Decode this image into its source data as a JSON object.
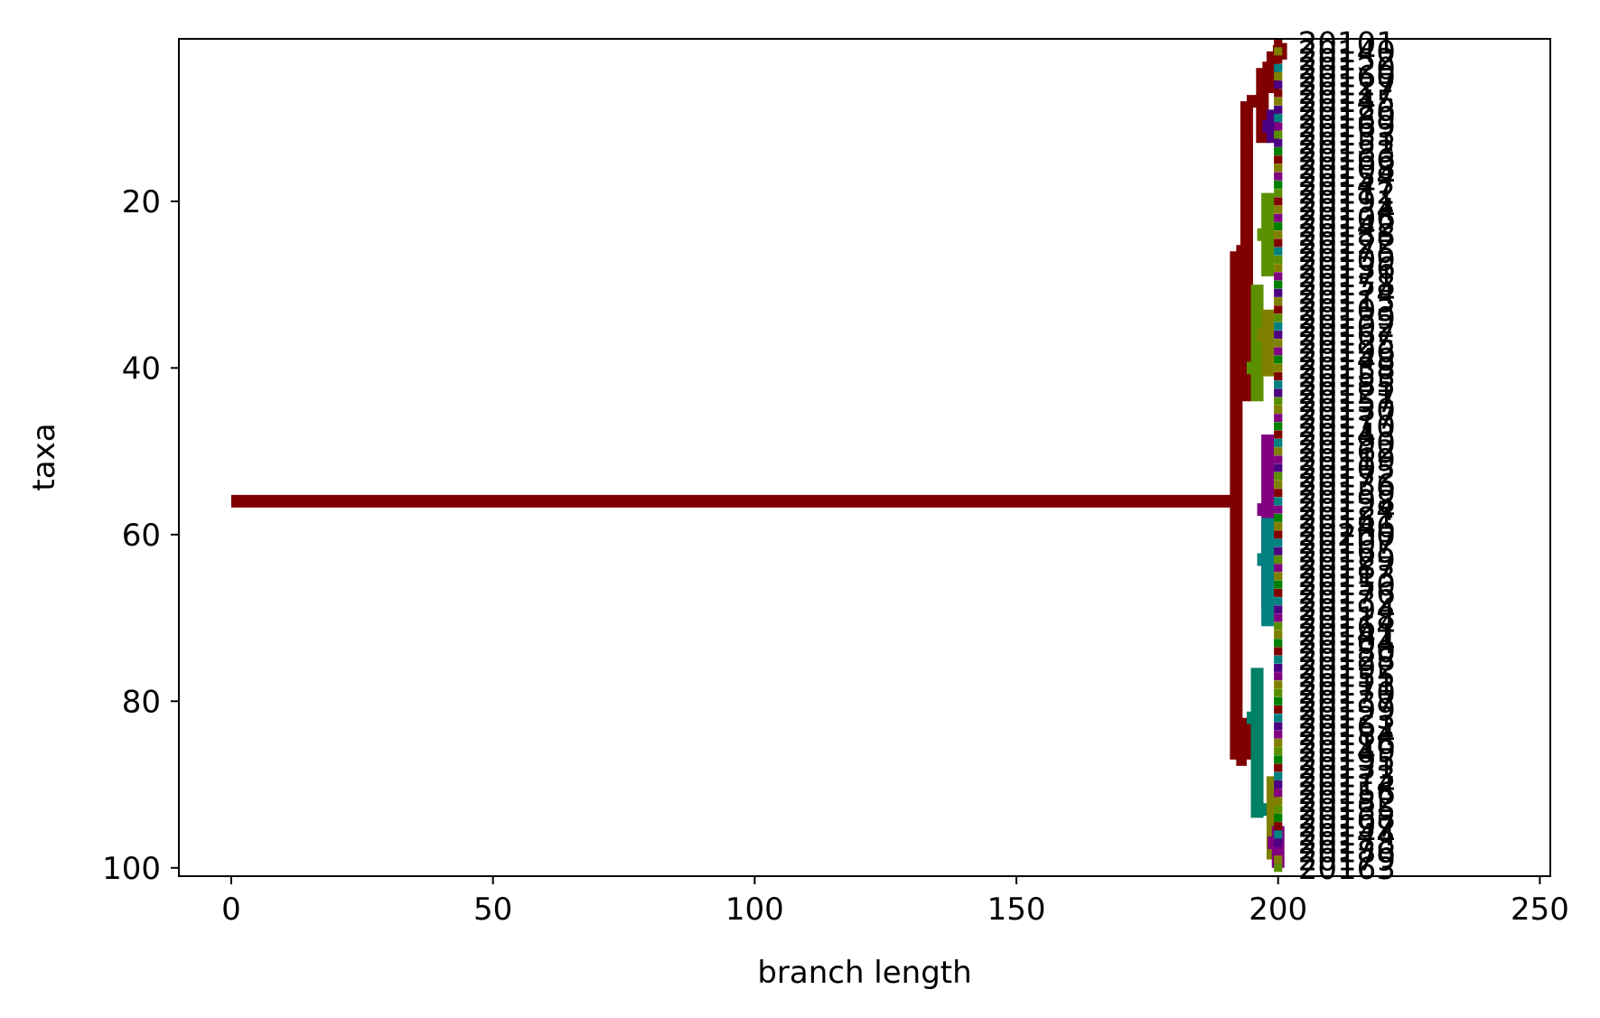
{
  "chart_data": {
    "type": "tree",
    "title": "",
    "xlabel": "branch length",
    "ylabel": "taxa",
    "xlim": [
      -10,
      252
    ],
    "ylim": [
      101,
      0.5
    ],
    "y_inverted": true,
    "grid": false,
    "legend": "none",
    "xticks": [
      0,
      50,
      100,
      150,
      200,
      250
    ],
    "yticks": [
      20,
      40,
      60,
      80,
      100
    ],
    "branches": [
      {
        "kind": "h",
        "x1": 0,
        "x2": 192,
        "y": 56,
        "color": "#800000"
      },
      {
        "kind": "v",
        "x": 192,
        "y1": 26,
        "y2": 87,
        "color": "#800000"
      },
      {
        "kind": "h",
        "x1": 192,
        "x2": 194,
        "y": 26,
        "color": "#800000"
      },
      {
        "kind": "v",
        "x": 194,
        "y1": 8,
        "y2": 44,
        "color": "#800000"
      },
      {
        "kind": "h",
        "x1": 194,
        "x2": 197,
        "y": 8,
        "color": "#800000"
      },
      {
        "kind": "v",
        "x": 197,
        "y1": 4,
        "y2": 13,
        "color": "#800000"
      },
      {
        "kind": "h",
        "x1": 197,
        "x2": 199,
        "y": 4,
        "color": "#800000"
      },
      {
        "kind": "v",
        "x": 199,
        "y1": 2,
        "y2": 7,
        "color": "#800000"
      },
      {
        "kind": "h",
        "x1": 199,
        "x2": 200.5,
        "y": 2,
        "color": "#800000"
      },
      {
        "kind": "v",
        "x": 200.5,
        "y1": 1,
        "y2": 3,
        "color": "#800000"
      },
      {
        "kind": "h",
        "x1": 197,
        "x2": 199,
        "y": 11,
        "color": "#4b0082"
      },
      {
        "kind": "v",
        "x": 199,
        "y1": 9,
        "y2": 13,
        "color": "#4b0082"
      },
      {
        "kind": "h",
        "x1": 194,
        "x2": 196,
        "y": 40,
        "color": "#5a8f00"
      },
      {
        "kind": "v",
        "x": 196,
        "y1": 30,
        "y2": 44,
        "color": "#5a8f00"
      },
      {
        "kind": "h",
        "x1": 196,
        "x2": 198,
        "y": 24,
        "color": "#5a8f00"
      },
      {
        "kind": "v",
        "x": 198,
        "y1": 19,
        "y2": 29,
        "color": "#5a8f00"
      },
      {
        "kind": "h",
        "x1": 196,
        "x2": 198,
        "y": 36,
        "color": "#808000"
      },
      {
        "kind": "v",
        "x": 198,
        "y1": 33,
        "y2": 41,
        "color": "#808000"
      },
      {
        "kind": "h",
        "x1": 192,
        "x2": 194,
        "y": 87,
        "color": "#800000"
      },
      {
        "kind": "v",
        "x": 194,
        "y1": 82,
        "y2": 87,
        "color": "#800000"
      },
      {
        "kind": "h",
        "x1": 194,
        "x2": 196,
        "y": 82,
        "color": "#008066"
      },
      {
        "kind": "v",
        "x": 196,
        "y1": 76,
        "y2": 94,
        "color": "#008066"
      },
      {
        "kind": "h",
        "x1": 196,
        "x2": 198,
        "y": 57,
        "color": "#800080"
      },
      {
        "kind": "v",
        "x": 198,
        "y1": 48,
        "y2": 69,
        "color": "#800080"
      },
      {
        "kind": "h",
        "x1": 196,
        "x2": 198,
        "y": 63,
        "color": "#008080"
      },
      {
        "kind": "v",
        "x": 198,
        "y1": 58,
        "y2": 71,
        "color": "#008080"
      },
      {
        "kind": "h",
        "x1": 196,
        "x2": 199,
        "y": 93,
        "color": "#008066"
      },
      {
        "kind": "v",
        "x": 199,
        "y1": 89,
        "y2": 99,
        "color": "#808000"
      },
      {
        "kind": "h",
        "x1": 198,
        "x2": 200,
        "y": 97,
        "color": "#800080"
      },
      {
        "kind": "v",
        "x": 200,
        "y1": 95,
        "y2": 100,
        "color": "#800080"
      }
    ],
    "tips": [
      {
        "y": 1,
        "label": "20101",
        "color": "#800000"
      },
      {
        "y": 2,
        "label": "20140",
        "color": "#808000"
      },
      {
        "y": 3,
        "label": "20152",
        "color": "#800000"
      },
      {
        "y": 4,
        "label": "20120",
        "color": "#008080"
      },
      {
        "y": 5,
        "label": "20160",
        "color": "#808000"
      },
      {
        "y": 6,
        "label": "20127",
        "color": "#4b0082"
      },
      {
        "y": 7,
        "label": "20117",
        "color": "#800000"
      },
      {
        "y": 8,
        "label": "20145",
        "color": "#808000"
      },
      {
        "y": 9,
        "label": "20126",
        "color": "#4b0082"
      },
      {
        "y": 10,
        "label": "20189",
        "color": "#008080"
      },
      {
        "y": 11,
        "label": "20169",
        "color": "#800080"
      },
      {
        "y": 12,
        "label": "20133",
        "color": "#5a8f00"
      },
      {
        "y": 13,
        "label": "20151",
        "color": "#4b0082"
      },
      {
        "y": 14,
        "label": "20183",
        "color": "#008000"
      },
      {
        "y": 15,
        "label": "20166",
        "color": "#800000"
      },
      {
        "y": 16,
        "label": "20108",
        "color": "#808000"
      },
      {
        "y": 17,
        "label": "20154",
        "color": "#800080"
      },
      {
        "y": 18,
        "label": "20147",
        "color": "#008000"
      },
      {
        "y": 19,
        "label": "20112",
        "color": "#5a8f00"
      },
      {
        "y": 20,
        "label": "20191",
        "color": "#800000"
      },
      {
        "y": 21,
        "label": "20134",
        "color": "#808000"
      },
      {
        "y": 22,
        "label": "20106",
        "color": "#800080"
      },
      {
        "y": 23,
        "label": "20142",
        "color": "#008000"
      },
      {
        "y": 24,
        "label": "20188",
        "color": "#808000"
      },
      {
        "y": 25,
        "label": "20122",
        "color": "#800000"
      },
      {
        "y": 26,
        "label": "20175",
        "color": "#008080"
      },
      {
        "y": 27,
        "label": "20109",
        "color": "#5a8f00"
      },
      {
        "y": 28,
        "label": "20136",
        "color": "#808000"
      },
      {
        "y": 29,
        "label": "20171",
        "color": "#800080"
      },
      {
        "y": 30,
        "label": "20158",
        "color": "#008000"
      },
      {
        "y": 31,
        "label": "20174",
        "color": "#4b0082"
      },
      {
        "y": 32,
        "label": "20115",
        "color": "#808000"
      },
      {
        "y": 33,
        "label": "20103",
        "color": "#800000"
      },
      {
        "y": 34,
        "label": "20139",
        "color": "#5a8f00"
      },
      {
        "y": 35,
        "label": "20102",
        "color": "#008080"
      },
      {
        "y": 36,
        "label": "20167",
        "color": "#4b0082"
      },
      {
        "y": 37,
        "label": "20125",
        "color": "#808000"
      },
      {
        "y": 38,
        "label": "20196",
        "color": "#800080"
      },
      {
        "y": 39,
        "label": "20148",
        "color": "#008000"
      },
      {
        "y": 40,
        "label": "20138",
        "color": "#808000"
      },
      {
        "y": 41,
        "label": "20153",
        "color": "#800000"
      },
      {
        "y": 42,
        "label": "20185",
        "color": "#008080"
      },
      {
        "y": 43,
        "label": "20121",
        "color": "#4b0082"
      },
      {
        "y": 44,
        "label": "20157",
        "color": "#5a8f00"
      },
      {
        "y": 45,
        "label": "20130",
        "color": "#808000"
      },
      {
        "y": 46,
        "label": "20177",
        "color": "#800080"
      },
      {
        "y": 47,
        "label": "20110",
        "color": "#008000"
      },
      {
        "y": 48,
        "label": "20143",
        "color": "#800000"
      },
      {
        "y": 49,
        "label": "20190",
        "color": "#008080"
      },
      {
        "y": 50,
        "label": "20162",
        "color": "#808000"
      },
      {
        "y": 51,
        "label": "20119",
        "color": "#800080"
      },
      {
        "y": 52,
        "label": "20105",
        "color": "#4b0082"
      },
      {
        "y": 53,
        "label": "20172",
        "color": "#5a8f00"
      },
      {
        "y": 54,
        "label": "20136",
        "color": "#808000"
      },
      {
        "y": 55,
        "label": "20159",
        "color": "#800000"
      },
      {
        "y": 56,
        "label": "20198",
        "color": "#008080"
      },
      {
        "y": 57,
        "label": "20124",
        "color": "#800080"
      },
      {
        "y": 58,
        "label": "20181",
        "color": "#008000"
      },
      {
        "y": 59,
        "label": "20146",
        "color": "#808000"
      },
      {
        "y": 60,
        "label": "20200",
        "color": "#800000"
      },
      {
        "y": 61,
        "label": "20107",
        "color": "#008080"
      },
      {
        "y": 62,
        "label": "20165",
        "color": "#4b0082"
      },
      {
        "y": 63,
        "label": "20129",
        "color": "#5a8f00"
      },
      {
        "y": 64,
        "label": "20187",
        "color": "#800080"
      },
      {
        "y": 65,
        "label": "20113",
        "color": "#808000"
      },
      {
        "y": 66,
        "label": "20150",
        "color": "#008000"
      },
      {
        "y": 67,
        "label": "20176",
        "color": "#800000"
      },
      {
        "y": 68,
        "label": "20132",
        "color": "#008080"
      },
      {
        "y": 69,
        "label": "20194",
        "color": "#4b0082"
      },
      {
        "y": 70,
        "label": "20118",
        "color": "#800080"
      },
      {
        "y": 71,
        "label": "20164",
        "color": "#5a8f00"
      },
      {
        "y": 72,
        "label": "20141",
        "color": "#808000"
      },
      {
        "y": 73,
        "label": "20104",
        "color": "#008000"
      },
      {
        "y": 74,
        "label": "20180",
        "color": "#800000"
      },
      {
        "y": 75,
        "label": "20128",
        "color": "#008080"
      },
      {
        "y": 76,
        "label": "20192",
        "color": "#4b0082"
      },
      {
        "y": 77,
        "label": "20155",
        "color": "#800080"
      },
      {
        "y": 78,
        "label": "20111",
        "color": "#808000"
      },
      {
        "y": 79,
        "label": "20170",
        "color": "#5a8f00"
      },
      {
        "y": 80,
        "label": "20137",
        "color": "#008000"
      },
      {
        "y": 81,
        "label": "20199",
        "color": "#800000"
      },
      {
        "y": 82,
        "label": "20123",
        "color": "#008080"
      },
      {
        "y": 83,
        "label": "20161",
        "color": "#4b0082"
      },
      {
        "y": 84,
        "label": "20184",
        "color": "#800080"
      },
      {
        "y": 85,
        "label": "20116",
        "color": "#808000"
      },
      {
        "y": 86,
        "label": "20149",
        "color": "#5a8f00"
      },
      {
        "y": 87,
        "label": "20195",
        "color": "#008000"
      },
      {
        "y": 88,
        "label": "20131",
        "color": "#800000"
      },
      {
        "y": 89,
        "label": "20173",
        "color": "#008080"
      },
      {
        "y": 90,
        "label": "20114",
        "color": "#4b0082"
      },
      {
        "y": 91,
        "label": "20156",
        "color": "#800080"
      },
      {
        "y": 92,
        "label": "20182",
        "color": "#808000"
      },
      {
        "y": 93,
        "label": "20135",
        "color": "#5a8f00"
      },
      {
        "y": 94,
        "label": "20168",
        "color": "#008000"
      },
      {
        "y": 95,
        "label": "20197",
        "color": "#800000"
      },
      {
        "y": 96,
        "label": "20144",
        "color": "#008080"
      },
      {
        "y": 97,
        "label": "20178",
        "color": "#4b0082"
      },
      {
        "y": 98,
        "label": "20186",
        "color": "#800080"
      },
      {
        "y": 99,
        "label": "20179",
        "color": "#808000"
      },
      {
        "y": 100,
        "label": "20163",
        "color": "#5a8f00"
      }
    ]
  }
}
